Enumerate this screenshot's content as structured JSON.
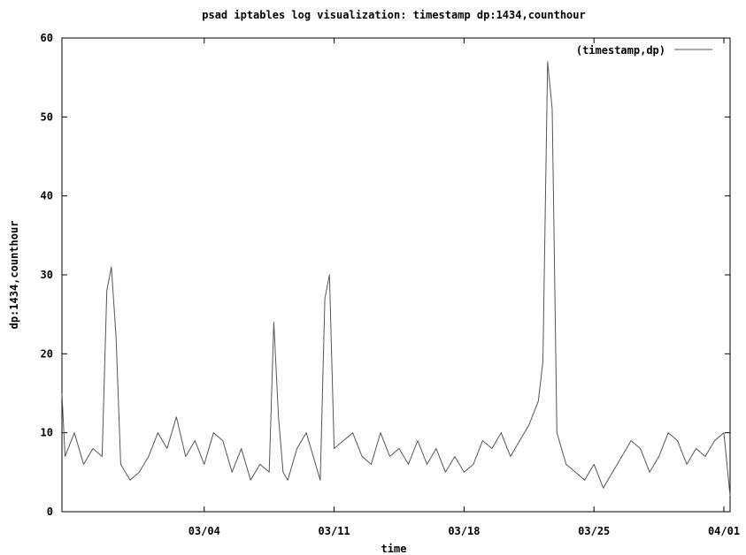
{
  "chart_data": {
    "type": "line",
    "title": "psad iptables log visualization: timestamp dp:1434,counthour",
    "xlabel": "time",
    "ylabel": "dp:1434,counthour",
    "legend": {
      "label": "(timestamp,dp)",
      "placement": "top-right"
    },
    "grid": false,
    "ylim": [
      0,
      60
    ],
    "yticks": [
      "0",
      "10",
      "20",
      "30",
      "40",
      "50",
      "60"
    ],
    "xlim": [
      "02/25 08:00",
      "04/01 08:00"
    ],
    "xticks": [
      "03/04",
      "03/11",
      "03/18",
      "03/25",
      "04/01"
    ],
    "series": [
      {
        "name": "(timestamp,dp)",
        "color": "#555555",
        "x": [
          "02/25 00:00",
          "02/25 12:00",
          "02/26 00:00",
          "02/26 12:00",
          "02/27 00:00",
          "02/27 12:00",
          "02/27 18:00",
          "02/28 00:00",
          "02/28 06:00",
          "02/28 12:00",
          "02/29 00:00",
          "02/29 12:00",
          "03/01 00:00",
          "03/01 12:00",
          "03/02 00:00",
          "03/02 12:00",
          "03/03 00:00",
          "03/03 12:00",
          "03/04 00:00",
          "03/04 12:00",
          "03/05 00:00",
          "03/05 12:00",
          "03/06 00:00",
          "03/06 12:00",
          "03/07 00:00",
          "03/07 12:00",
          "03/07 18:00",
          "03/08 00:00",
          "03/08 06:00",
          "03/08 12:00",
          "03/09 00:00",
          "03/09 12:00",
          "03/10 00:00",
          "03/10 06:00",
          "03/10 12:00",
          "03/10 18:00",
          "03/11 00:00",
          "03/11 12:00",
          "03/12 00:00",
          "03/12 12:00",
          "03/13 00:00",
          "03/13 12:00",
          "03/14 00:00",
          "03/14 12:00",
          "03/15 00:00",
          "03/15 12:00",
          "03/16 00:00",
          "03/16 12:00",
          "03/17 00:00",
          "03/17 12:00",
          "03/18 00:00",
          "03/18 12:00",
          "03/19 00:00",
          "03/19 12:00",
          "03/20 00:00",
          "03/20 12:00",
          "03/21 00:00",
          "03/21 12:00",
          "03/22 00:00",
          "03/22 06:00",
          "03/22 12:00",
          "03/22 18:00",
          "03/23 00:00",
          "03/23 12:00",
          "03/24 00:00",
          "03/24 12:00",
          "03/25 00:00",
          "03/25 12:00",
          "03/26 00:00",
          "03/26 12:00",
          "03/27 00:00",
          "03/27 12:00",
          "03/28 00:00",
          "03/28 12:00",
          "03/29 00:00",
          "03/29 12:00",
          "03/30 00:00",
          "03/30 12:00",
          "03/31 00:00",
          "03/31 12:00",
          "04/01 00:00",
          "04/01 08:00"
        ],
        "y": [
          15,
          7,
          10,
          6,
          8,
          7,
          28,
          31,
          22,
          6,
          4,
          5,
          7,
          10,
          8,
          12,
          7,
          9,
          6,
          10,
          9,
          5,
          8,
          4,
          6,
          5,
          24,
          12,
          5,
          4,
          8,
          10,
          6,
          4,
          27,
          30,
          8,
          9,
          10,
          7,
          6,
          10,
          7,
          8,
          6,
          9,
          6,
          8,
          5,
          7,
          5,
          6,
          9,
          8,
          10,
          7,
          9,
          11,
          14,
          19,
          57,
          51,
          10,
          6,
          5,
          4,
          6,
          3,
          5,
          7,
          9,
          8,
          5,
          7,
          10,
          9,
          6,
          8,
          7,
          9,
          10,
          2
        ]
      }
    ]
  }
}
